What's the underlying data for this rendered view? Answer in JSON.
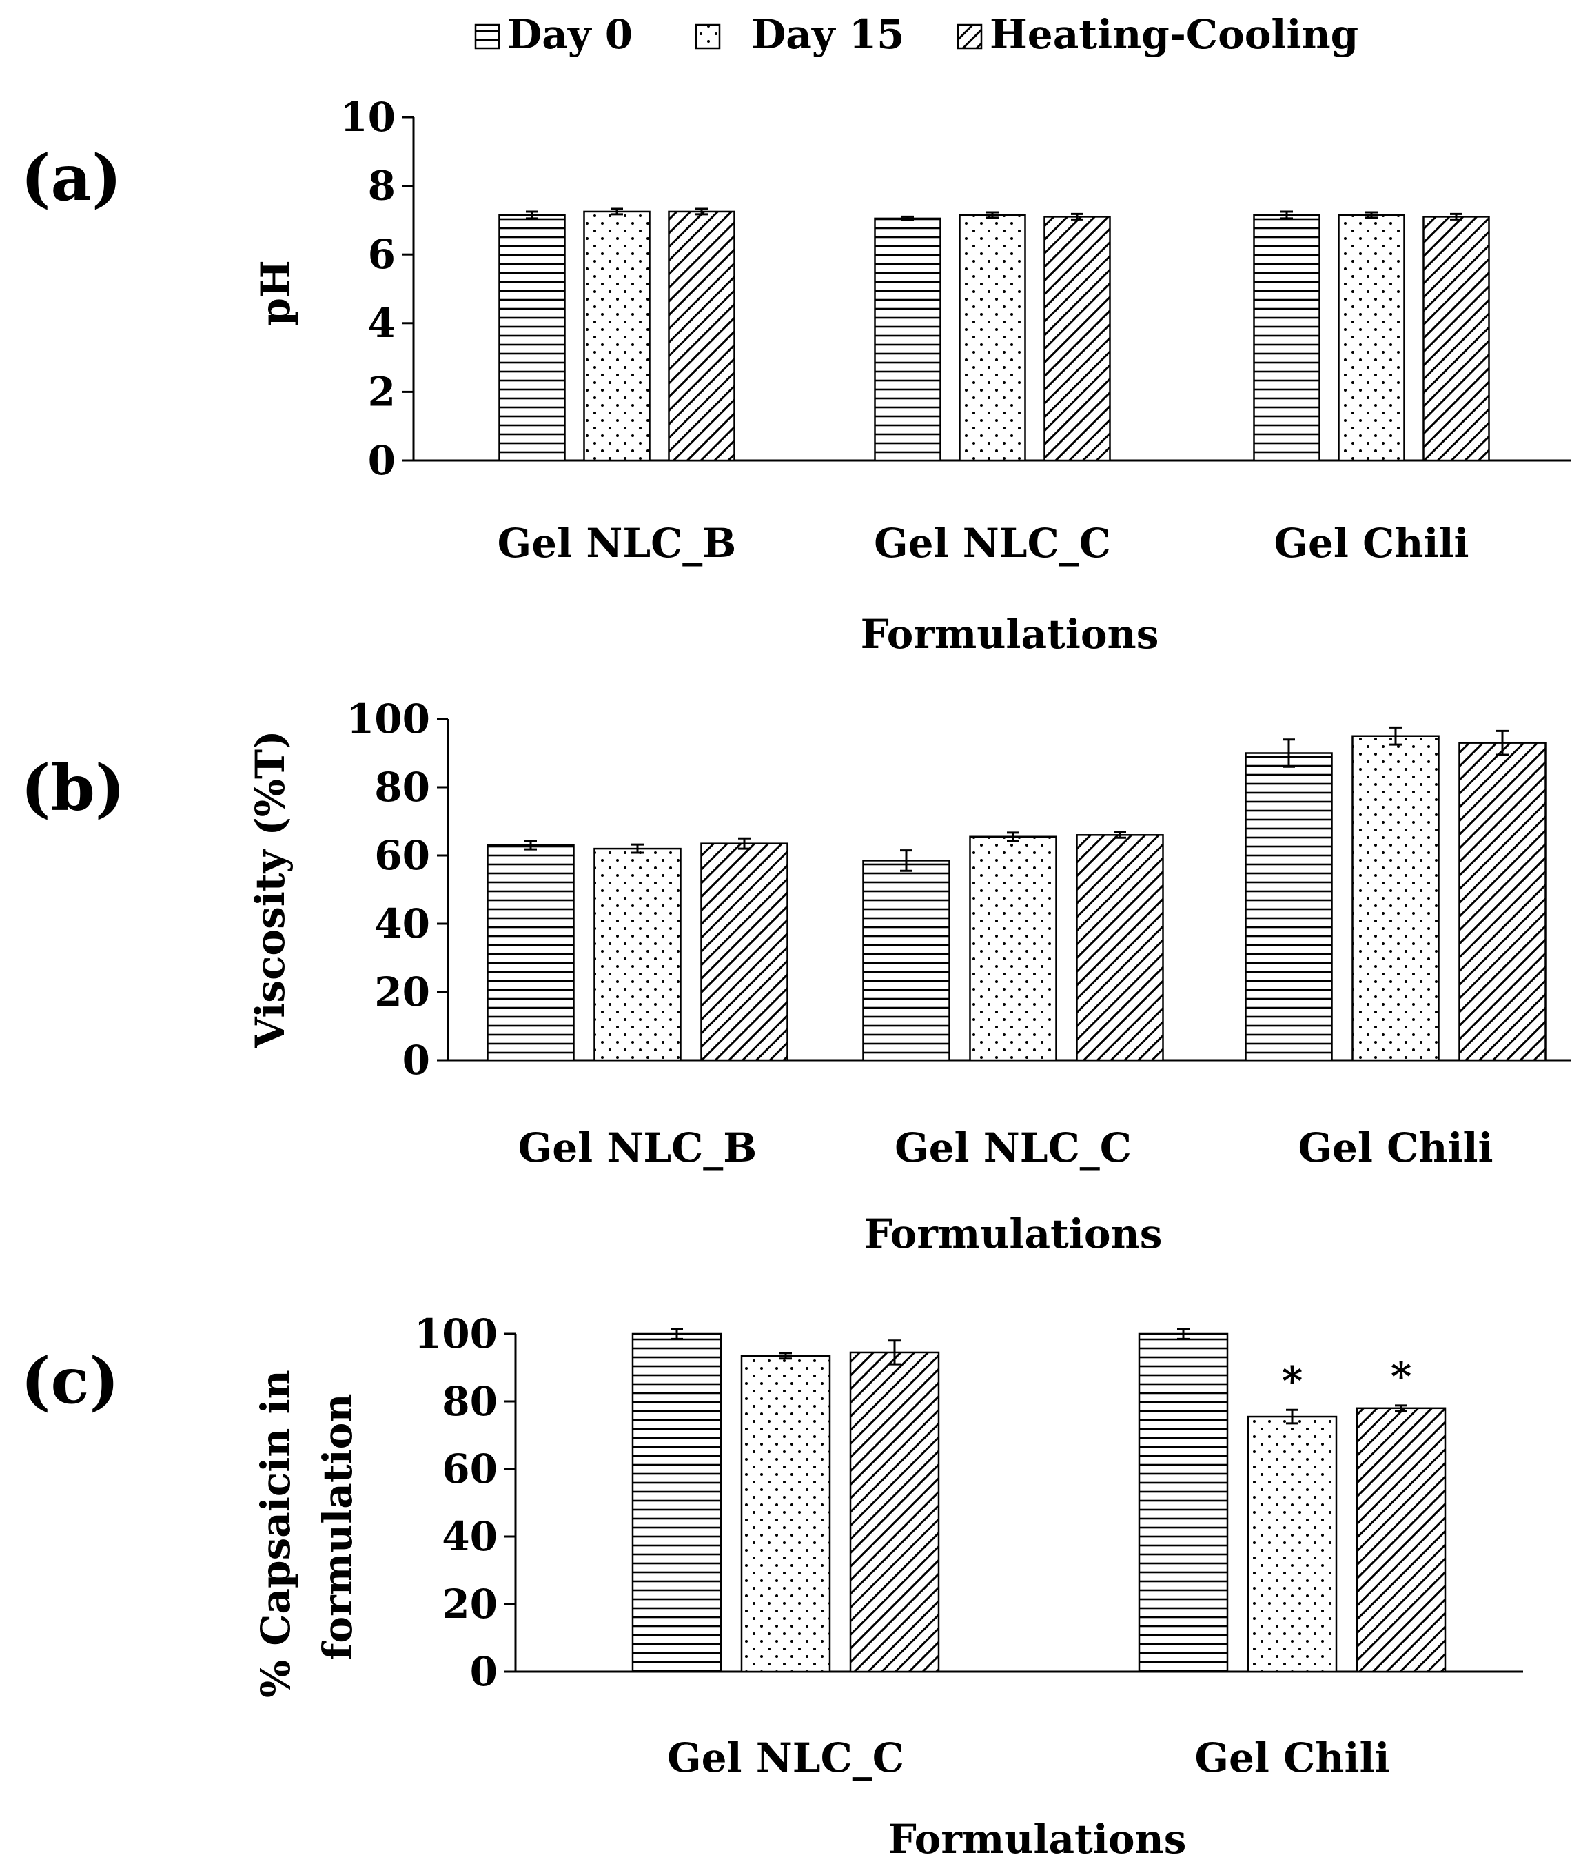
{
  "legend": {
    "items": [
      {
        "label": "Day 0",
        "pattern": "horizontal-lines"
      },
      {
        "label": "Day 15",
        "pattern": "dots"
      },
      {
        "label": "Heating-Cooling",
        "pattern": "diagonal-lines"
      }
    ]
  },
  "colors": {
    "ink": "#000000",
    "background": "#ffffff"
  },
  "chart_data": [
    {
      "type": "bar",
      "panel_label": "(a)",
      "ylabel": "pH",
      "xlabel": "Formulations",
      "ylim": [
        0,
        10
      ],
      "yticks": [
        0,
        2,
        4,
        6,
        8,
        10
      ],
      "categories": [
        "Gel NLC_B",
        "Gel NLC_C",
        "Gel Chili"
      ],
      "series": [
        {
          "name": "Day 0",
          "values": [
            7.15,
            7.05,
            7.15
          ],
          "errors": [
            0.1,
            0.05,
            0.1
          ]
        },
        {
          "name": "Day 15",
          "values": [
            7.25,
            7.15,
            7.15
          ],
          "errors": [
            0.08,
            0.08,
            0.08
          ]
        },
        {
          "name": "Heating-Cooling",
          "values": [
            7.25,
            7.1,
            7.1
          ],
          "errors": [
            0.08,
            0.08,
            0.08
          ]
        }
      ],
      "annotations": []
    },
    {
      "type": "bar",
      "panel_label": "(b)",
      "ylabel": "Viscosity (%T)",
      "xlabel": "Formulations",
      "ylim": [
        0,
        100
      ],
      "yticks": [
        0,
        20,
        40,
        60,
        80,
        100
      ],
      "categories": [
        "Gel NLC_B",
        "Gel NLC_C",
        "Gel Chili"
      ],
      "series": [
        {
          "name": "Day 0",
          "values": [
            63,
            58.5,
            90
          ],
          "errors": [
            1.2,
            3,
            4
          ]
        },
        {
          "name": "Day 15",
          "values": [
            62,
            65.5,
            95
          ],
          "errors": [
            1.2,
            1.2,
            2.5
          ]
        },
        {
          "name": "Heating-Cooling",
          "values": [
            63.5,
            66,
            93
          ],
          "errors": [
            1.5,
            0.8,
            3.5
          ]
        }
      ],
      "annotations": []
    },
    {
      "type": "bar",
      "panel_label": "(c)",
      "ylabel": "% Capsaicin in formulation",
      "ylabel_lines": [
        "% Capsaicin in",
        "formulation"
      ],
      "xlabel": "Formulations",
      "ylim": [
        0,
        100
      ],
      "yticks": [
        0,
        20,
        40,
        60,
        80,
        100
      ],
      "categories": [
        "Gel NLC_C",
        "Gel Chili"
      ],
      "series": [
        {
          "name": "Day 0",
          "values": [
            100,
            100
          ],
          "errors": [
            1.5,
            1.5
          ]
        },
        {
          "name": "Day 15",
          "values": [
            93.5,
            75.5
          ],
          "errors": [
            0.8,
            2
          ]
        },
        {
          "name": "Heating-Cooling",
          "values": [
            94.5,
            78
          ],
          "errors": [
            3.5,
            0.8
          ]
        }
      ],
      "annotations": [
        {
          "category": "Gel Chili",
          "series": "Day 15",
          "text": "*"
        },
        {
          "category": "Gel Chili",
          "series": "Heating-Cooling",
          "text": "*"
        }
      ]
    }
  ]
}
